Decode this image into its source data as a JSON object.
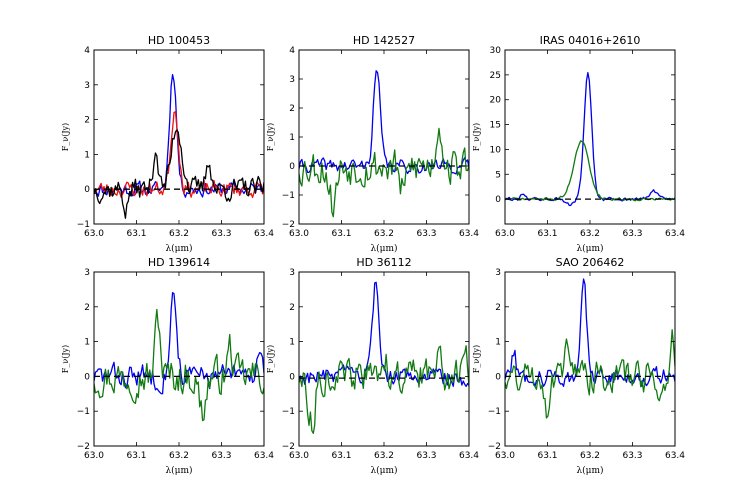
{
  "figure": {
    "background": "#ffffff"
  },
  "colors": {
    "blue": "#0000ee",
    "green": "#117a11",
    "red": "#ee1111",
    "black": "#000000",
    "baseline": "#000000"
  },
  "chart_data": [
    {
      "type": "line",
      "title": "HD 100453",
      "xlabel": "λ(μm)",
      "ylabel": "F_ν(Jy)",
      "xlim": [
        63.0,
        63.4
      ],
      "ylim": [
        -1,
        4
      ],
      "xticks": [
        63.0,
        63.1,
        63.2,
        63.3,
        63.4
      ],
      "yticks": [
        -1,
        0,
        1,
        2,
        3,
        4
      ],
      "xtick_labels": [
        "63.0",
        "63.1",
        "63.2",
        "63.3",
        "63.4"
      ],
      "ytick_labels": [
        "−1",
        "0",
        "1",
        "2",
        "3",
        "4"
      ],
      "baseline": 0,
      "series": [
        {
          "name": "blue",
          "color": "#0000ee",
          "seed": 11,
          "noise": 0.18,
          "peaks": [
            [
              63.186,
              3.45,
              0.008
            ]
          ]
        },
        {
          "name": "red",
          "color": "#ee1111",
          "seed": 23,
          "noise": 0.2,
          "peaks": [
            [
              63.19,
              2.3,
              0.009
            ]
          ]
        },
        {
          "name": "black",
          "color": "#000000",
          "seed": 37,
          "noise": 0.28,
          "peaks": [
            [
              63.195,
              1.85,
              0.012
            ],
            [
              63.145,
              1.2,
              0.006
            ],
            [
              63.27,
              0.9,
              0.006
            ],
            [
              63.075,
              -0.6,
              0.005
            ]
          ]
        }
      ]
    },
    {
      "type": "line",
      "title": "HD 142527",
      "xlabel": "λ(μm)",
      "ylabel": "F_ν(Jy)",
      "xlim": [
        63.0,
        63.4
      ],
      "ylim": [
        -2,
        4
      ],
      "xticks": [
        63.0,
        63.1,
        63.2,
        63.3,
        63.4
      ],
      "yticks": [
        -2,
        -1,
        0,
        1,
        2,
        3,
        4
      ],
      "xtick_labels": [
        "63.0",
        "63.1",
        "63.2",
        "63.3",
        "63.4"
      ],
      "ytick_labels": [
        "−2",
        "−1",
        "0",
        "1",
        "2",
        "3",
        "4"
      ],
      "baseline": 0,
      "series": [
        {
          "name": "blue",
          "color": "#0000ee",
          "seed": 41,
          "noise": 0.2,
          "peaks": [
            [
              63.183,
              3.3,
              0.008
            ]
          ]
        },
        {
          "name": "green",
          "color": "#117a11",
          "seed": 53,
          "noise": 0.55,
          "peaks": [
            [
              63.33,
              1.5,
              0.007
            ],
            [
              63.245,
              -0.9,
              0.008
            ],
            [
              63.08,
              -1.3,
              0.008
            ]
          ]
        }
      ]
    },
    {
      "type": "line",
      "title": "IRAS 04016+2610",
      "xlabel": "λ(μm)",
      "ylabel": "F_ν(Jy)",
      "xlim": [
        63.0,
        63.4
      ],
      "ylim": [
        -5,
        30
      ],
      "xticks": [
        63.0,
        63.1,
        63.2,
        63.3,
        63.4
      ],
      "yticks": [
        0,
        5,
        10,
        15,
        20,
        25,
        30
      ],
      "xtick_labels": [
        "63.0",
        "63.1",
        "63.2",
        "63.3",
        "63.4"
      ],
      "ytick_labels": [
        "0",
        "5",
        "10",
        "15",
        "20",
        "25",
        "30"
      ],
      "baseline": 0,
      "series": [
        {
          "name": "blue",
          "color": "#0000ee",
          "seed": 61,
          "noise": 0.35,
          "peaks": [
            [
              63.195,
              25.2,
              0.009
            ],
            [
              63.35,
              1.8,
              0.008
            ],
            [
              63.15,
              -1.2,
              0.01
            ],
            [
              63.04,
              1.2,
              0.004
            ]
          ]
        },
        {
          "name": "green",
          "color": "#117a11",
          "seed": 71,
          "noise": 0.25,
          "peaks": [
            [
              63.18,
              11.6,
              0.018
            ]
          ]
        }
      ]
    },
    {
      "type": "line",
      "title": "HD 139614",
      "xlabel": "λ(μm)",
      "ylabel": "F_ν(Jy)",
      "xlim": [
        63.0,
        63.4
      ],
      "ylim": [
        -2,
        3
      ],
      "xticks": [
        63.0,
        63.1,
        63.2,
        63.3,
        63.4
      ],
      "yticks": [
        -2,
        -1,
        0,
        1,
        2,
        3
      ],
      "xtick_labels": [
        "63.0",
        "63.1",
        "63.2",
        "63.3",
        "63.4"
      ],
      "ytick_labels": [
        "−2",
        "−1",
        "0",
        "1",
        "2",
        "3"
      ],
      "baseline": 0,
      "series": [
        {
          "name": "blue",
          "color": "#0000ee",
          "seed": 83,
          "noise": 0.3,
          "peaks": [
            [
              63.187,
              2.3,
              0.008
            ],
            [
              63.39,
              1.0,
              0.005
            ]
          ]
        },
        {
          "name": "green",
          "color": "#117a11",
          "seed": 97,
          "noise": 0.45,
          "peaks": [
            [
              63.15,
              1.7,
              0.006
            ],
            [
              63.255,
              -1.0,
              0.008
            ],
            [
              63.32,
              0.8,
              0.006
            ]
          ]
        }
      ]
    },
    {
      "type": "line",
      "title": "HD 36112",
      "xlabel": "λ(μm)",
      "ylabel": "F_ν(Jy)",
      "xlim": [
        63.0,
        63.4
      ],
      "ylim": [
        -2,
        3
      ],
      "xticks": [
        63.0,
        63.1,
        63.2,
        63.3,
        63.4
      ],
      "yticks": [
        -2,
        -1,
        0,
        1,
        2,
        3
      ],
      "xtick_labels": [
        "63.0",
        "63.1",
        "63.2",
        "63.3",
        "63.4"
      ],
      "ytick_labels": [
        "−2",
        "−1",
        "0",
        "1",
        "2",
        "3"
      ],
      "baseline": -0.05,
      "series": [
        {
          "name": "blue",
          "color": "#0000ee",
          "seed": 103,
          "noise": 0.22,
          "peaks": [
            [
              63.18,
              2.6,
              0.007
            ],
            [
              63.39,
              -0.35,
              0.006
            ]
          ]
        },
        {
          "name": "green",
          "color": "#117a11",
          "seed": 113,
          "noise": 0.4,
          "peaks": [
            [
              63.2,
              0.4,
              0.01
            ],
            [
              63.33,
              1.1,
              0.007
            ],
            [
              63.03,
              -1.3,
              0.008
            ],
            [
              63.39,
              0.8,
              0.005
            ]
          ]
        }
      ]
    },
    {
      "type": "line",
      "title": "SAO 206462",
      "xlabel": "λ(μm)",
      "ylabel": "F_ν(Jy)",
      "xlim": [
        63.0,
        63.4
      ],
      "ylim": [
        -2,
        3
      ],
      "xticks": [
        63.0,
        63.1,
        63.2,
        63.3,
        63.4
      ],
      "yticks": [
        -2,
        -1,
        0,
        1,
        2,
        3
      ],
      "xtick_labels": [
        "63.0",
        "63.1",
        "63.2",
        "63.3",
        "63.4"
      ],
      "ytick_labels": [
        "−2",
        "−1",
        "0",
        "1",
        "2",
        "3"
      ],
      "baseline": 0,
      "series": [
        {
          "name": "blue",
          "color": "#0000ee",
          "seed": 127,
          "noise": 0.22,
          "peaks": [
            [
              63.185,
              2.6,
              0.007
            ],
            [
              63.02,
              0.8,
              0.005
            ]
          ]
        },
        {
          "name": "green",
          "color": "#117a11",
          "seed": 131,
          "noise": 0.4,
          "peaks": [
            [
              63.15,
              1.0,
              0.007
            ],
            [
              63.1,
              -0.8,
              0.006
            ],
            [
              63.395,
              1.2,
              0.004
            ],
            [
              63.37,
              -0.6,
              0.006
            ]
          ]
        }
      ]
    }
  ]
}
